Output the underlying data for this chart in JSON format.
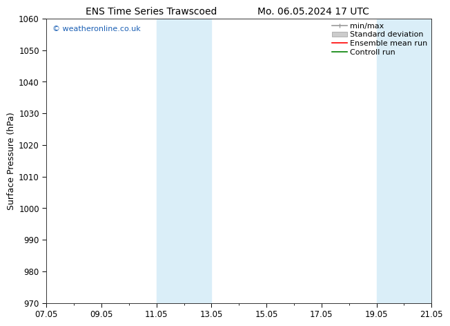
{
  "title_left": "ENS Time Series Trawscoed",
  "title_right": "Mo. 06.05.2024 17 UTC",
  "ylabel": "Surface Pressure (hPa)",
  "ylim": [
    970,
    1060
  ],
  "yticks": [
    970,
    980,
    990,
    1000,
    1010,
    1020,
    1030,
    1040,
    1050,
    1060
  ],
  "xticks_pos": [
    7.05,
    9.05,
    11.05,
    13.05,
    15.05,
    17.05,
    19.05,
    21.05
  ],
  "xticks_labels": [
    "07.05",
    "09.05",
    "11.05",
    "13.05",
    "15.05",
    "17.05",
    "19.05",
    "21.05"
  ],
  "xlim": [
    7.05,
    21.05
  ],
  "shaded_regions": [
    {
      "x_start": 11.05,
      "x_end": 13.05
    },
    {
      "x_start": 19.05,
      "x_end": 21.05
    }
  ],
  "shaded_color": "#daeef8",
  "background_color": "#ffffff",
  "watermark_text": "© weatheronline.co.uk",
  "watermark_color": "#1a5fb4",
  "legend_entries": [
    {
      "label": "min/max"
    },
    {
      "label": "Standard deviation"
    },
    {
      "label": "Ensemble mean run"
    },
    {
      "label": "Controll run"
    }
  ],
  "minmax_color": "#999999",
  "stddev_color": "#cccccc",
  "ensemble_color": "#ff0000",
  "control_color": "#008000",
  "title_fontsize": 10,
  "axis_label_fontsize": 9,
  "tick_fontsize": 8.5,
  "legend_fontsize": 8,
  "watermark_fontsize": 8
}
